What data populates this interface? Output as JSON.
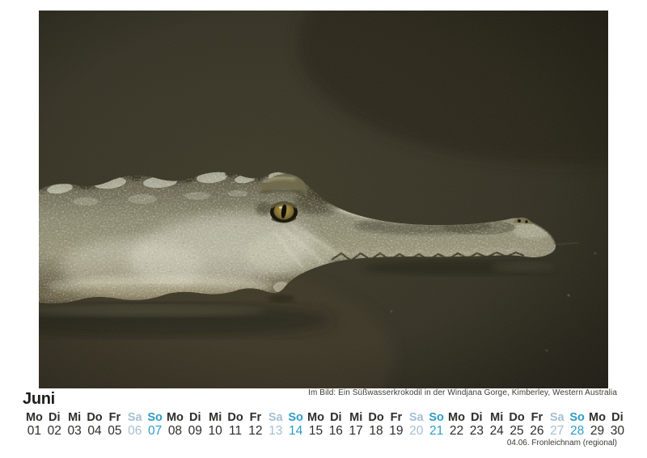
{
  "month": {
    "title": "Juni"
  },
  "photo": {
    "caption": "Im Bild: Ein Süßwasserkrokodil in der Windjana Gorge, Kimberley, Western Australia"
  },
  "holiday": {
    "note": "04.06. Fronleichnam (regional)"
  },
  "colors": {
    "weekday": "#2e2d2b",
    "saturday": "#a4bfd1",
    "sunday": "#2d9cc6"
  },
  "calendar": {
    "days": [
      {
        "weekday": "Mo",
        "date": "01",
        "type": "work"
      },
      {
        "weekday": "Di",
        "date": "02",
        "type": "work"
      },
      {
        "weekday": "Mi",
        "date": "03",
        "type": "work"
      },
      {
        "weekday": "Do",
        "date": "04",
        "type": "work"
      },
      {
        "weekday": "Fr",
        "date": "05",
        "type": "work"
      },
      {
        "weekday": "Sa",
        "date": "06",
        "type": "sat"
      },
      {
        "weekday": "So",
        "date": "07",
        "type": "sun"
      },
      {
        "weekday": "Mo",
        "date": "08",
        "type": "work"
      },
      {
        "weekday": "Di",
        "date": "09",
        "type": "work"
      },
      {
        "weekday": "Mi",
        "date": "10",
        "type": "work"
      },
      {
        "weekday": "Do",
        "date": "11",
        "type": "work"
      },
      {
        "weekday": "Fr",
        "date": "12",
        "type": "work"
      },
      {
        "weekday": "Sa",
        "date": "13",
        "type": "sat"
      },
      {
        "weekday": "So",
        "date": "14",
        "type": "sun"
      },
      {
        "weekday": "Mo",
        "date": "15",
        "type": "work"
      },
      {
        "weekday": "Di",
        "date": "16",
        "type": "work"
      },
      {
        "weekday": "Mi",
        "date": "17",
        "type": "work"
      },
      {
        "weekday": "Do",
        "date": "18",
        "type": "work"
      },
      {
        "weekday": "Fr",
        "date": "19",
        "type": "work"
      },
      {
        "weekday": "Sa",
        "date": "20",
        "type": "sat"
      },
      {
        "weekday": "So",
        "date": "21",
        "type": "sun"
      },
      {
        "weekday": "Mo",
        "date": "22",
        "type": "work"
      },
      {
        "weekday": "Di",
        "date": "23",
        "type": "work"
      },
      {
        "weekday": "Mi",
        "date": "24",
        "type": "work"
      },
      {
        "weekday": "Do",
        "date": "25",
        "type": "work"
      },
      {
        "weekday": "Fr",
        "date": "26",
        "type": "work"
      },
      {
        "weekday": "Sa",
        "date": "27",
        "type": "sat"
      },
      {
        "weekday": "So",
        "date": "28",
        "type": "sun"
      },
      {
        "weekday": "Mo",
        "date": "29",
        "type": "work"
      },
      {
        "weekday": "Di",
        "date": "30",
        "type": "work"
      }
    ]
  }
}
